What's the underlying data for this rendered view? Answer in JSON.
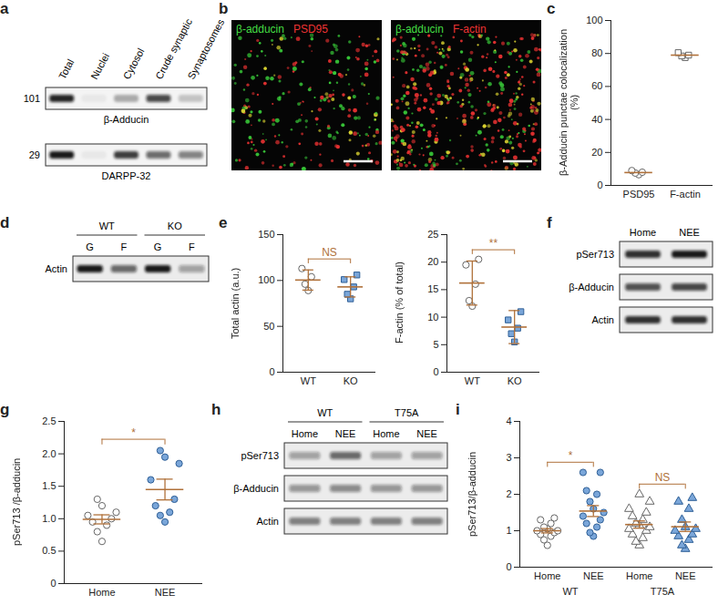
{
  "chart_data": [
    {
      "type": "dot_plot",
      "panel_label": "c",
      "ylabel": "β-Adducin punctae colocalization (%)",
      "categories": [
        "PSD95",
        "F-actin"
      ],
      "values": [
        [
          6.5,
          7.5,
          8,
          9
        ],
        [
          77.5,
          78.5,
          79,
          80.5
        ]
      ],
      "mean": [
        7.8,
        79
      ],
      "markers": [
        "circle",
        "square"
      ],
      "colors": [
        "#ffffff",
        "#ffffff"
      ],
      "ylim": [
        0,
        100
      ],
      "yticks": [
        0,
        20,
        40,
        60,
        80,
        100
      ]
    },
    {
      "type": "dot_plot",
      "panel_label": "e",
      "ylabel": "Total actin (a.u.)",
      "categories": [
        "WT",
        "KO"
      ],
      "values": [
        [
          113,
          104,
          96,
          89
        ],
        [
          106,
          101,
          93,
          85,
          80
        ]
      ],
      "mean": [
        100.5,
        93
      ],
      "error": [
        11,
        11
      ],
      "markers": [
        "circle",
        "square"
      ],
      "colors": [
        "#ffffff",
        "#7aa6d9"
      ],
      "ylim": [
        0,
        150
      ],
      "yticks": [
        0,
        50,
        100,
        150
      ],
      "annotations": [
        {
          "text": "NS",
          "from": 0,
          "to": 1
        }
      ]
    },
    {
      "type": "dot_plot",
      "ylabel": "F-actin (% of total)",
      "categories": [
        "WT",
        "KO"
      ],
      "values": [
        [
          20.5,
          19.5,
          16,
          13,
          12
        ],
        [
          11,
          9.5,
          8,
          7,
          5.5
        ]
      ],
      "mean": [
        16.2,
        8.2
      ],
      "error": [
        4,
        3
      ],
      "markers": [
        "circle",
        "square"
      ],
      "colors": [
        "#ffffff",
        "#7aa6d9"
      ],
      "ylim": [
        0,
        25
      ],
      "yticks": [
        0,
        5,
        10,
        15,
        20,
        25
      ],
      "annotations": [
        {
          "text": "**",
          "from": 0,
          "to": 1
        }
      ]
    },
    {
      "type": "dot_plot",
      "panel_label": "g",
      "ylabel": "pSer713 /β-adducin",
      "categories": [
        "Home",
        "NEE"
      ],
      "values": [
        [
          0.65,
          0.8,
          0.9,
          0.95,
          1.0,
          1.05,
          1.1,
          1.2,
          1.3
        ],
        [
          0.95,
          1.05,
          1.1,
          1.2,
          1.3,
          1.6,
          1.85,
          1.95,
          2.05
        ]
      ],
      "mean": [
        0.99,
        1.45
      ],
      "error": [
        0.07,
        0.16
      ],
      "markers": [
        "circle",
        "circle"
      ],
      "colors": [
        "#ffffff",
        "#7aa6d9"
      ],
      "ylim": [
        0,
        2.5
      ],
      "yticks": [
        0,
        0.5,
        {
          "value": 1,
          "label": "1.0"
        },
        1.5,
        {
          "value": 2,
          "label": "2.0"
        },
        2.5
      ],
      "annotations": [
        {
          "text": "*",
          "from": 0,
          "to": 1
        }
      ]
    },
    {
      "type": "dot_plot",
      "panel_label": "i",
      "ylabel": "pSer713/β-adducin",
      "categories": [
        "Home",
        "NEE",
        "Home",
        "NEE"
      ],
      "values": [
        [
          0.6,
          0.75,
          0.85,
          0.9,
          0.95,
          1.0,
          1.0,
          1.05,
          1.1,
          1.2,
          1.3,
          1.35
        ],
        [
          0.85,
          0.95,
          1.1,
          1.2,
          1.3,
          1.4,
          1.5,
          1.6,
          1.8,
          2.0,
          2.1,
          2.6,
          2.6
        ],
        [
          0.6,
          0.7,
          0.8,
          0.9,
          1.0,
          1.05,
          1.1,
          1.15,
          1.2,
          1.3,
          1.4,
          1.5,
          1.6,
          1.8,
          2.0
        ],
        [
          0.5,
          0.6,
          0.75,
          0.85,
          0.9,
          1.0,
          1.05,
          1.1,
          1.3,
          1.6,
          1.8,
          1.9
        ]
      ],
      "mean": [
        1.0,
        1.54,
        1.17,
        1.11
      ],
      "error": [
        0.06,
        0.15,
        0.1,
        0.13
      ],
      "markers": [
        "circle",
        "circle",
        "triangle",
        "triangle"
      ],
      "colors": [
        "#ffffff",
        "#7aa6d9",
        "#ffffff",
        "#7aa6d9"
      ],
      "ylim": [
        0,
        4
      ],
      "yticks": [
        0,
        1,
        2,
        3,
        4
      ],
      "annotations": [
        {
          "text": "*",
          "from": 0,
          "to": 1
        },
        {
          "text": "NS",
          "from": 2,
          "to": 3
        }
      ],
      "groups": [
        {
          "label": "WT",
          "positions": [
            0,
            1
          ]
        },
        {
          "label": "T75A",
          "positions": [
            2,
            3
          ]
        }
      ]
    }
  ],
  "blots": [
    {
      "panel_label": "a",
      "lanes": [
        "Total",
        "Nuclei",
        "Cytosol",
        "Crude synaptic",
        "Synaptosomes"
      ],
      "rows": [
        {
          "name": "β-Adducin",
          "mw": 101,
          "bands": [
            0.9,
            0.05,
            0.3,
            0.75,
            0.2
          ]
        },
        {
          "name": "DARPP-32",
          "mw": 29,
          "bands": [
            0.95,
            0.05,
            0.8,
            0.6,
            0.5
          ]
        }
      ]
    },
    {
      "panel_label": "d",
      "groups": [
        {
          "label": "WT",
          "lanes": [
            "G",
            "F"
          ]
        },
        {
          "label": "KO",
          "lanes": [
            "G",
            "F"
          ]
        }
      ],
      "rows": [
        {
          "name": "Actin",
          "bands": [
            0.95,
            0.6,
            0.95,
            0.35
          ]
        }
      ]
    },
    {
      "panel_label": "f",
      "lanes": [
        "Home",
        "NEE"
      ],
      "rows": [
        {
          "name": "pSer713",
          "bands": [
            0.85,
            0.95
          ]
        },
        {
          "name": "β-Adducin",
          "bands": [
            0.7,
            0.75
          ]
        },
        {
          "name": "Actin",
          "bands": [
            0.85,
            0.85
          ]
        }
      ]
    },
    {
      "panel_label": "h",
      "groups": [
        {
          "label": "WT",
          "lanes": [
            "Home",
            "NEE"
          ]
        },
        {
          "label": "T75A",
          "lanes": [
            "Home",
            "NEE"
          ]
        }
      ],
      "rows": [
        {
          "name": "pSer713",
          "bands": [
            0.35,
            0.6,
            0.35,
            0.35
          ]
        },
        {
          "name": "β-Adducin",
          "bands": [
            0.4,
            0.45,
            0.4,
            0.4
          ]
        },
        {
          "name": "Actin",
          "bands": [
            0.5,
            0.5,
            0.5,
            0.5
          ]
        }
      ]
    }
  ],
  "images": {
    "panel_label": "b",
    "panels": [
      {
        "labels": [
          {
            "text": "β-adducin",
            "color": "#44dd44"
          },
          {
            "text": "PSD95",
            "color": "#ee3333"
          }
        ]
      },
      {
        "labels": [
          {
            "text": "β-adducin",
            "color": "#44dd44"
          },
          {
            "text": "F-actin",
            "color": "#ee3333"
          }
        ]
      }
    ]
  }
}
